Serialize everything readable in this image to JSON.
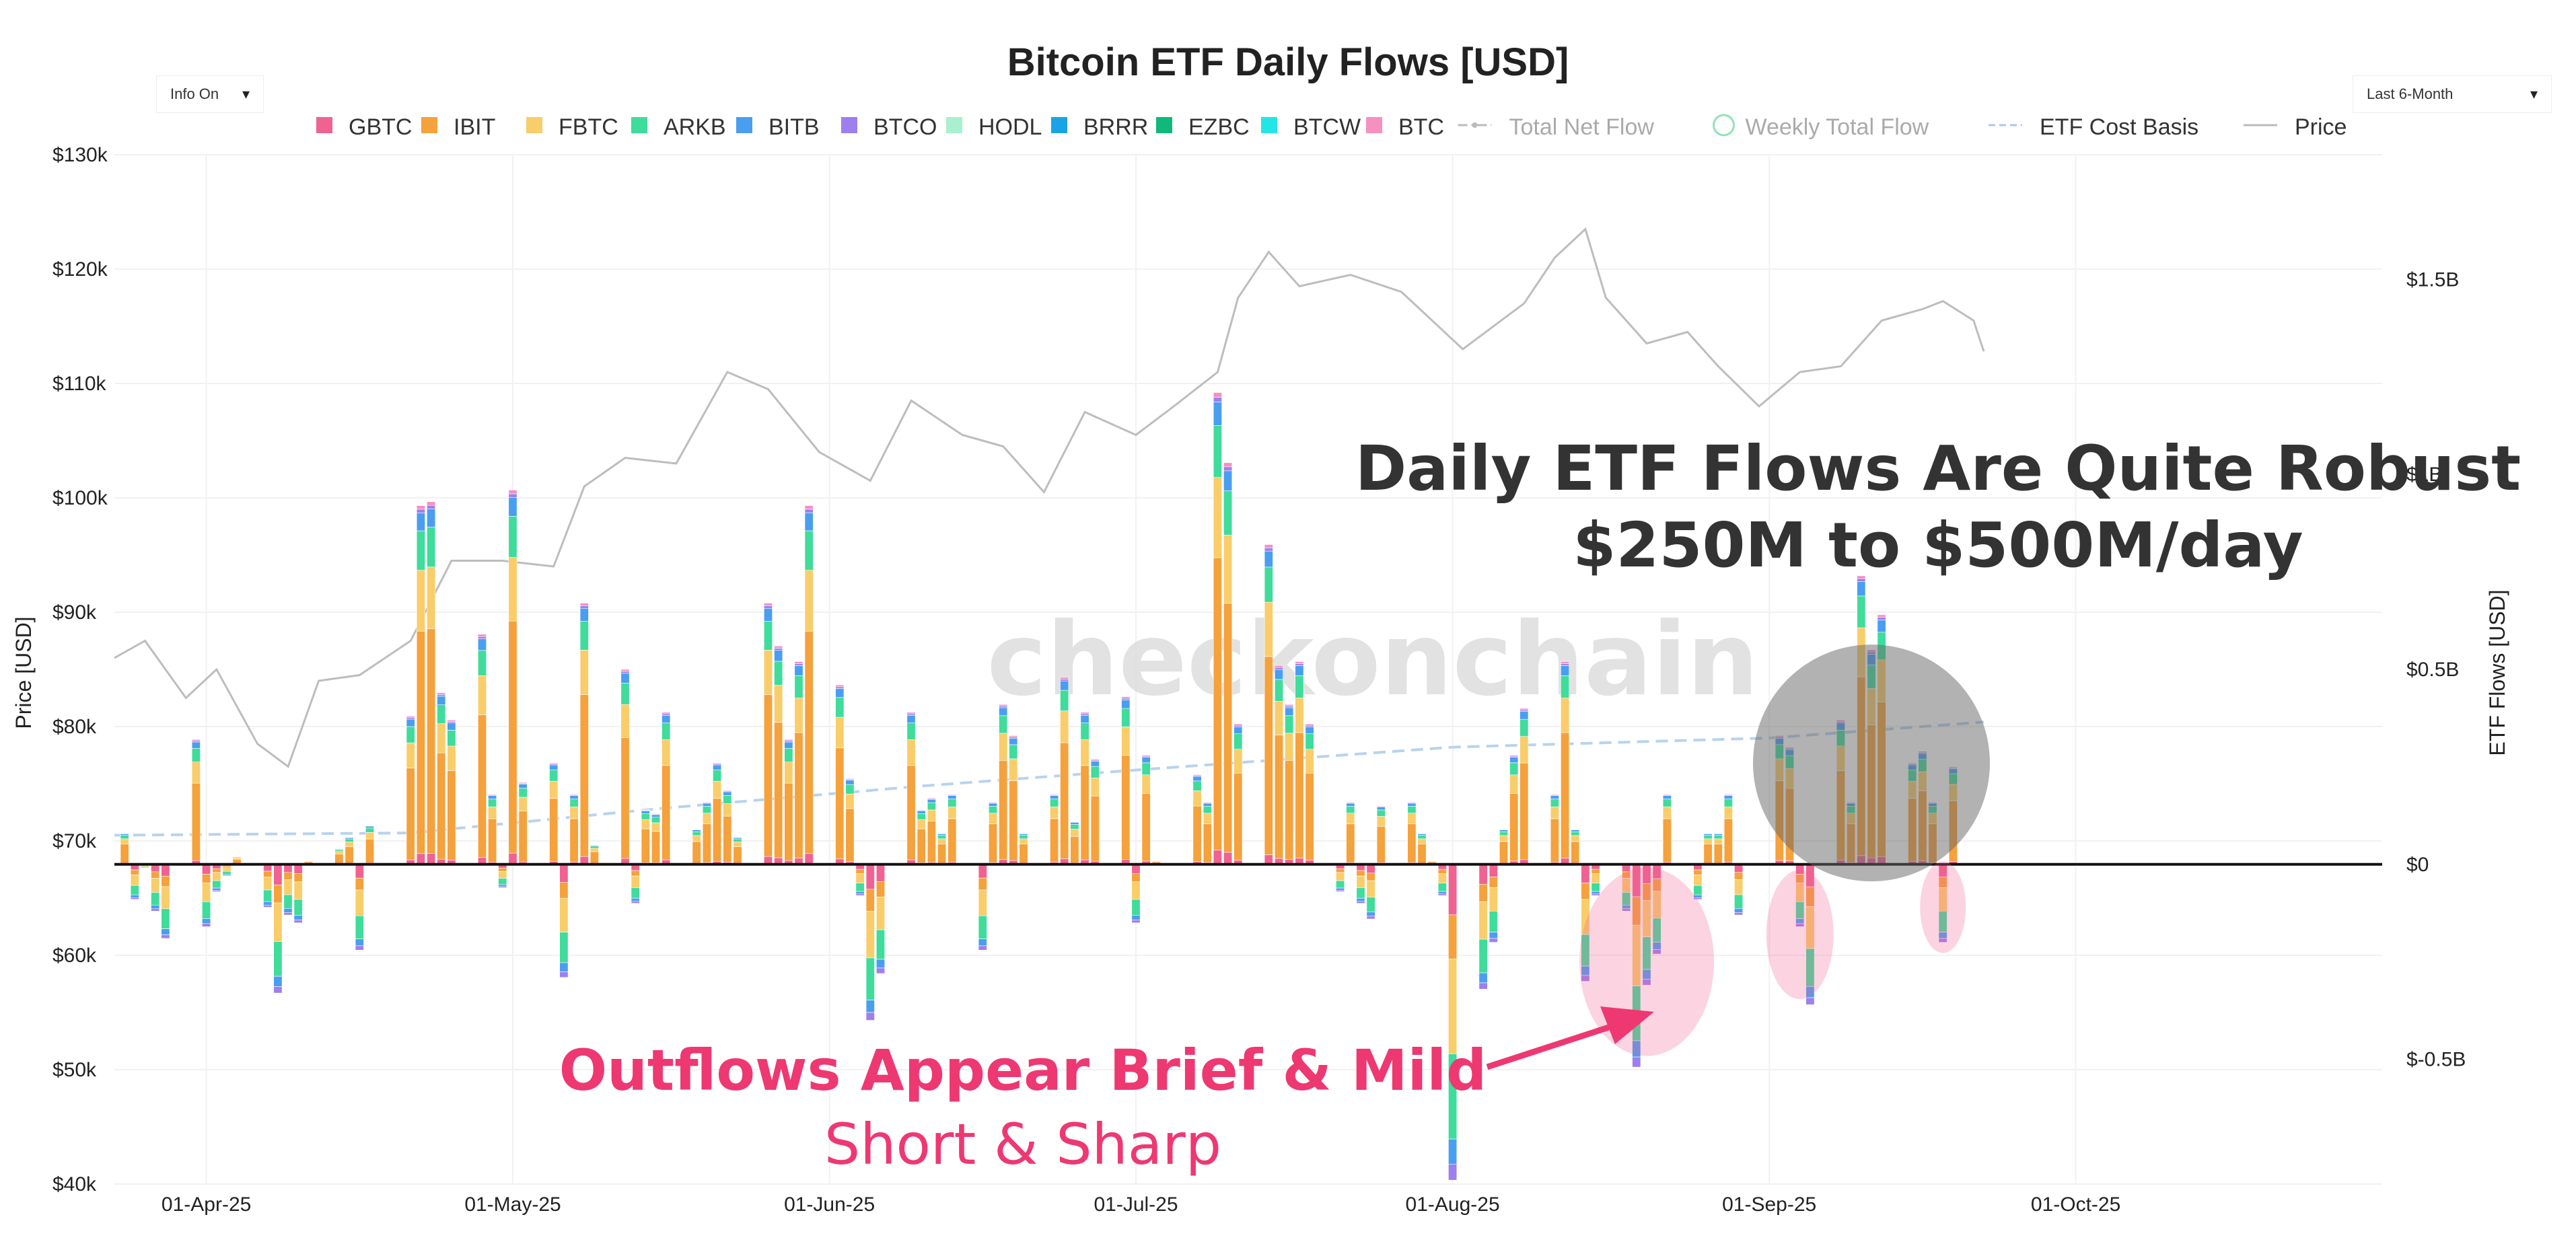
{
  "controls": {
    "info_label": "Info On",
    "range_label": "Last 6-Month",
    "caret": "▾"
  },
  "chart_data": {
    "type": "bar",
    "title": "Bitcoin ETF Daily Flows [USD]",
    "subtitle": "",
    "ylabel_left": "Price [USD]",
    "ylabel_right": "ETF Flows [USD]",
    "watermark": "checkonchain",
    "left_axis": {
      "min": 40000,
      "max": 130000,
      "ticks": [
        130000,
        120000,
        110000,
        100000,
        90000,
        80000,
        70000,
        60000,
        50000,
        40000
      ],
      "tick_labels": [
        "$130k",
        "$120k",
        "$110k",
        "$100k",
        "$90k",
        "$80k",
        "$70k",
        "$60k",
        "$50k",
        "$40k"
      ]
    },
    "right_axis": {
      "min": -0.82,
      "max": 1.82,
      "ticks": [
        1.5,
        1.0,
        0.5,
        0,
        -0.5
      ],
      "tick_labels": [
        "$1.5B",
        "$1B",
        "$0.5B",
        "$0",
        "$-0.5B"
      ]
    },
    "x_axis": {
      "start": "2025-03-23",
      "end": "2025-10-31",
      "ticks": [
        "2025-04-01",
        "2025-05-01",
        "2025-06-01",
        "2025-07-01",
        "2025-08-01",
        "2025-09-01",
        "2025-10-01"
      ],
      "tick_labels": [
        "01-Apr-25",
        "01-May-25",
        "01-Jun-25",
        "01-Jul-25",
        "01-Aug-25",
        "01-Sep-25",
        "01-Oct-25"
      ]
    },
    "grid": true,
    "legend_position": "top-center",
    "legend": [
      {
        "name": "GBTC",
        "color": "#f06292",
        "shape": "square"
      },
      {
        "name": "IBIT",
        "color": "#f5a13c",
        "shape": "square"
      },
      {
        "name": "FBTC",
        "color": "#f9cd6a",
        "shape": "square"
      },
      {
        "name": "ARKB",
        "color": "#3fdc9c",
        "shape": "square"
      },
      {
        "name": "BITB",
        "color": "#4a9ef0",
        "shape": "square"
      },
      {
        "name": "BTCO",
        "color": "#9d7ff0",
        "shape": "square"
      },
      {
        "name": "HODL",
        "color": "#a8f0d0",
        "shape": "square"
      },
      {
        "name": "BRRR",
        "color": "#1ba3e8",
        "shape": "square"
      },
      {
        "name": "EZBC",
        "color": "#10b87a",
        "shape": "square"
      },
      {
        "name": "BTCW",
        "color": "#22e6e6",
        "shape": "square"
      },
      {
        "name": "BTC",
        "color": "#f590c0",
        "shape": "square"
      },
      {
        "name": "Total Net Flow",
        "color": "#bbbbbb",
        "shape": "dash-dot",
        "faded": true
      },
      {
        "name": "Weekly Total Flow",
        "color": "#8fe3b8",
        "shape": "circle",
        "faded": true
      },
      {
        "name": "ETF Cost Basis",
        "color": "#a8c8e8",
        "shape": "dash"
      },
      {
        "name": "Price",
        "color": "#bbbbbb",
        "shape": "line"
      }
    ],
    "flow_series_order": [
      "GBTC",
      "IBIT",
      "FBTC",
      "ARKB",
      "BITB",
      "BTCO",
      "HODL",
      "BRRR",
      "EZBC",
      "BTCW",
      "BTC"
    ],
    "daily_flows": [
      {
        "date": "2025-03-24",
        "total": 0.08
      },
      {
        "date": "2025-03-25",
        "total": -0.09
      },
      {
        "date": "2025-03-26",
        "total": -0.01
      },
      {
        "date": "2025-03-27",
        "total": -0.12
      },
      {
        "date": "2025-03-28",
        "total": -0.19
      },
      {
        "date": "2025-03-31",
        "total": 0.32
      },
      {
        "date": "2025-04-01",
        "total": -0.16
      },
      {
        "date": "2025-04-02",
        "total": -0.07
      },
      {
        "date": "2025-04-03",
        "total": -0.03
      },
      {
        "date": "2025-04-04",
        "total": 0.02
      },
      {
        "date": "2025-04-07",
        "total": -0.11
      },
      {
        "date": "2025-04-08",
        "total": -0.33
      },
      {
        "date": "2025-04-09",
        "total": -0.13
      },
      {
        "date": "2025-04-10",
        "total": -0.15
      },
      {
        "date": "2025-04-11",
        "total": 0.01
      },
      {
        "date": "2025-04-14",
        "total": 0.04
      },
      {
        "date": "2025-04-15",
        "total": 0.07
      },
      {
        "date": "2025-04-16",
        "total": -0.22
      },
      {
        "date": "2025-04-17",
        "total": 0.1
      },
      {
        "date": "2025-04-21",
        "total": 0.38
      },
      {
        "date": "2025-04-22",
        "total": 0.92
      },
      {
        "date": "2025-04-23",
        "total": 0.93
      },
      {
        "date": "2025-04-24",
        "total": 0.44
      },
      {
        "date": "2025-04-25",
        "total": 0.37
      },
      {
        "date": "2025-04-28",
        "total": 0.59
      },
      {
        "date": "2025-04-29",
        "total": 0.18
      },
      {
        "date": "2025-04-30",
        "total": -0.06
      },
      {
        "date": "2025-05-01",
        "total": 0.96
      },
      {
        "date": "2025-05-02",
        "total": 0.21
      },
      {
        "date": "2025-05-05",
        "total": 0.26
      },
      {
        "date": "2025-05-06",
        "total": -0.29
      },
      {
        "date": "2025-05-07",
        "total": 0.18
      },
      {
        "date": "2025-05-08",
        "total": 0.67
      },
      {
        "date": "2025-05-09",
        "total": 0.05
      },
      {
        "date": "2025-05-12",
        "total": 0.5
      },
      {
        "date": "2025-05-13",
        "total": -0.1
      },
      {
        "date": "2025-05-14",
        "total": 0.14
      },
      {
        "date": "2025-05-15",
        "total": 0.13
      },
      {
        "date": "2025-05-16",
        "total": 0.39
      },
      {
        "date": "2025-05-19",
        "total": 0.09
      },
      {
        "date": "2025-05-20",
        "total": 0.16
      },
      {
        "date": "2025-05-21",
        "total": 0.26
      },
      {
        "date": "2025-05-22",
        "total": 0.19
      },
      {
        "date": "2025-05-23",
        "total": 0.07
      },
      {
        "date": "2025-05-26",
        "total": 0.67
      },
      {
        "date": "2025-05-27",
        "total": 0.56
      },
      {
        "date": "2025-05-28",
        "total": 0.32
      },
      {
        "date": "2025-05-29",
        "total": 0.52
      },
      {
        "date": "2025-05-30",
        "total": 0.92
      },
      {
        "date": "2025-06-02",
        "total": 0.46
      },
      {
        "date": "2025-06-03",
        "total": 0.22
      },
      {
        "date": "2025-06-04",
        "total": -0.08
      },
      {
        "date": "2025-06-05",
        "total": -0.4
      },
      {
        "date": "2025-06-06",
        "total": -0.28
      },
      {
        "date": "2025-06-09",
        "total": 0.39
      },
      {
        "date": "2025-06-10",
        "total": 0.14
      },
      {
        "date": "2025-06-11",
        "total": 0.17
      },
      {
        "date": "2025-06-12",
        "total": 0.08
      },
      {
        "date": "2025-06-13",
        "total": 0.18
      },
      {
        "date": "2025-06-16",
        "total": -0.22
      },
      {
        "date": "2025-06-17",
        "total": 0.16
      },
      {
        "date": "2025-06-18",
        "total": 0.41
      },
      {
        "date": "2025-06-19",
        "total": 0.33
      },
      {
        "date": "2025-06-20",
        "total": 0.08
      },
      {
        "date": "2025-06-23",
        "total": 0.18
      },
      {
        "date": "2025-06-24",
        "total": 0.48
      },
      {
        "date": "2025-06-25",
        "total": 0.11
      },
      {
        "date": "2025-06-26",
        "total": 0.39
      },
      {
        "date": "2025-06-27",
        "total": 0.27
      },
      {
        "date": "2025-06-30",
        "total": 0.43
      },
      {
        "date": "2025-07-01",
        "total": -0.15
      },
      {
        "date": "2025-07-02",
        "total": 0.28
      },
      {
        "date": "2025-07-03",
        "total": 0.01
      },
      {
        "date": "2025-07-07",
        "total": 0.23
      },
      {
        "date": "2025-07-08",
        "total": 0.16
      },
      {
        "date": "2025-07-09",
        "total": 1.21
      },
      {
        "date": "2025-07-10",
        "total": 1.03
      },
      {
        "date": "2025-07-11",
        "total": 0.36
      },
      {
        "date": "2025-07-14",
        "total": 0.82
      },
      {
        "date": "2025-07-15",
        "total": 0.51
      },
      {
        "date": "2025-07-16",
        "total": 0.41
      },
      {
        "date": "2025-07-17",
        "total": 0.52
      },
      {
        "date": "2025-07-18",
        "total": 0.36
      },
      {
        "date": "2025-07-21",
        "total": -0.07
      },
      {
        "date": "2025-07-22",
        "total": 0.16
      },
      {
        "date": "2025-07-23",
        "total": -0.1
      },
      {
        "date": "2025-07-24",
        "total": -0.14
      },
      {
        "date": "2025-07-25",
        "total": 0.15
      },
      {
        "date": "2025-07-28",
        "total": 0.16
      },
      {
        "date": "2025-07-29",
        "total": 0.08
      },
      {
        "date": "2025-07-30",
        "total": 0.01
      },
      {
        "date": "2025-07-31",
        "total": -0.08
      },
      {
        "date": "2025-08-01",
        "total": -0.81
      },
      {
        "date": "2025-08-04",
        "total": -0.32
      },
      {
        "date": "2025-08-05",
        "total": -0.2
      },
      {
        "date": "2025-08-06",
        "total": 0.09
      },
      {
        "date": "2025-08-07",
        "total": 0.28
      },
      {
        "date": "2025-08-08",
        "total": 0.4
      },
      {
        "date": "2025-08-11",
        "total": 0.18
      },
      {
        "date": "2025-08-12",
        "total": 0.52
      },
      {
        "date": "2025-08-13",
        "total": 0.09
      },
      {
        "date": "2025-08-14",
        "total": -0.3
      },
      {
        "date": "2025-08-15",
        "total": -0.08
      },
      {
        "date": "2025-08-18",
        "total": -0.12
      },
      {
        "date": "2025-08-19",
        "total": -0.52
      },
      {
        "date": "2025-08-20",
        "total": -0.31
      },
      {
        "date": "2025-08-21",
        "total": -0.23
      },
      {
        "date": "2025-08-22",
        "total": 0.18
      },
      {
        "date": "2025-08-25",
        "total": -0.09
      },
      {
        "date": "2025-08-26",
        "total": 0.08
      },
      {
        "date": "2025-08-27",
        "total": 0.08
      },
      {
        "date": "2025-08-28",
        "total": 0.18
      },
      {
        "date": "2025-08-29",
        "total": -0.13
      },
      {
        "date": "2025-09-02",
        "total": 0.33
      },
      {
        "date": "2025-09-03",
        "total": 0.3
      },
      {
        "date": "2025-09-04",
        "total": -0.16
      },
      {
        "date": "2025-09-05",
        "total": -0.36
      },
      {
        "date": "2025-09-08",
        "total": 0.37
      },
      {
        "date": "2025-09-09",
        "total": 0.16
      },
      {
        "date": "2025-09-10",
        "total": 0.74
      },
      {
        "date": "2025-09-11",
        "total": 0.55
      },
      {
        "date": "2025-09-12",
        "total": 0.64
      },
      {
        "date": "2025-09-15",
        "total": 0.26
      },
      {
        "date": "2025-09-16",
        "total": 0.29
      },
      {
        "date": "2025-09-17",
        "total": 0.16
      },
      {
        "date": "2025-09-18",
        "total": -0.2
      },
      {
        "date": "2025-09-19",
        "total": 0.25
      }
    ],
    "price_points": [
      {
        "date": "2025-03-23",
        "price": 86000
      },
      {
        "date": "2025-03-26",
        "price": 87500
      },
      {
        "date": "2025-03-30",
        "price": 82500
      },
      {
        "date": "2025-04-02",
        "price": 85000
      },
      {
        "date": "2025-04-06",
        "price": 78500
      },
      {
        "date": "2025-04-09",
        "price": 76500
      },
      {
        "date": "2025-04-12",
        "price": 84000
      },
      {
        "date": "2025-04-16",
        "price": 84500
      },
      {
        "date": "2025-04-21",
        "price": 87500
      },
      {
        "date": "2025-04-25",
        "price": 94500
      },
      {
        "date": "2025-04-30",
        "price": 94500
      },
      {
        "date": "2025-05-05",
        "price": 94000
      },
      {
        "date": "2025-05-08",
        "price": 101000
      },
      {
        "date": "2025-05-12",
        "price": 103500
      },
      {
        "date": "2025-05-17",
        "price": 103000
      },
      {
        "date": "2025-05-22",
        "price": 111000
      },
      {
        "date": "2025-05-26",
        "price": 109500
      },
      {
        "date": "2025-05-31",
        "price": 104000
      },
      {
        "date": "2025-06-05",
        "price": 101500
      },
      {
        "date": "2025-06-09",
        "price": 108500
      },
      {
        "date": "2025-06-14",
        "price": 105500
      },
      {
        "date": "2025-06-18",
        "price": 104500
      },
      {
        "date": "2025-06-22",
        "price": 100500
      },
      {
        "date": "2025-06-26",
        "price": 107500
      },
      {
        "date": "2025-07-01",
        "price": 105500
      },
      {
        "date": "2025-07-05",
        "price": 108200
      },
      {
        "date": "2025-07-09",
        "price": 111000
      },
      {
        "date": "2025-07-11",
        "price": 117500
      },
      {
        "date": "2025-07-14",
        "price": 121500
      },
      {
        "date": "2025-07-17",
        "price": 118500
      },
      {
        "date": "2025-07-22",
        "price": 119500
      },
      {
        "date": "2025-07-27",
        "price": 118000
      },
      {
        "date": "2025-08-02",
        "price": 113000
      },
      {
        "date": "2025-08-08",
        "price": 117000
      },
      {
        "date": "2025-08-11",
        "price": 121000
      },
      {
        "date": "2025-08-14",
        "price": 123500
      },
      {
        "date": "2025-08-16",
        "price": 117500
      },
      {
        "date": "2025-08-20",
        "price": 113500
      },
      {
        "date": "2025-08-24",
        "price": 114500
      },
      {
        "date": "2025-08-27",
        "price": 111500
      },
      {
        "date": "2025-08-31",
        "price": 108000
      },
      {
        "date": "2025-09-04",
        "price": 111000
      },
      {
        "date": "2025-09-08",
        "price": 111500
      },
      {
        "date": "2025-09-12",
        "price": 115500
      },
      {
        "date": "2025-09-16",
        "price": 116500
      },
      {
        "date": "2025-09-18",
        "price": 117200
      },
      {
        "date": "2025-09-21",
        "price": 115500
      },
      {
        "date": "2025-09-22",
        "price": 112800
      }
    ],
    "cost_basis_points": [
      {
        "date": "2025-03-23",
        "price": 70500
      },
      {
        "date": "2025-04-21",
        "price": 70700
      },
      {
        "date": "2025-05-15",
        "price": 72800
      },
      {
        "date": "2025-06-10",
        "price": 74800
      },
      {
        "date": "2025-07-01",
        "price": 76200
      },
      {
        "date": "2025-08-01",
        "price": 78200
      },
      {
        "date": "2025-09-01",
        "price": 79000
      },
      {
        "date": "2025-09-22",
        "price": 80400
      }
    ],
    "annotations": {
      "headline_1": "Daily ETF Flows Are Quite Robust",
      "headline_2": "$250M to $500M/day",
      "outflow_1": "Outflows Appear Brief & Mild",
      "outflow_2": "Short & Sharp",
      "inflow_highlight": {
        "center_date": "2025-09-11",
        "center_flow": 0.26,
        "color": "#666666"
      },
      "outflow_highlights": [
        {
          "center_date": "2025-08-20",
          "center_flow": -0.25,
          "color": "#f06292"
        },
        {
          "center_date": "2025-09-04",
          "center_flow": -0.18,
          "color": "#f06292"
        },
        {
          "center_date": "2025-09-18",
          "center_flow": -0.11,
          "color": "#f06292"
        }
      ]
    }
  }
}
